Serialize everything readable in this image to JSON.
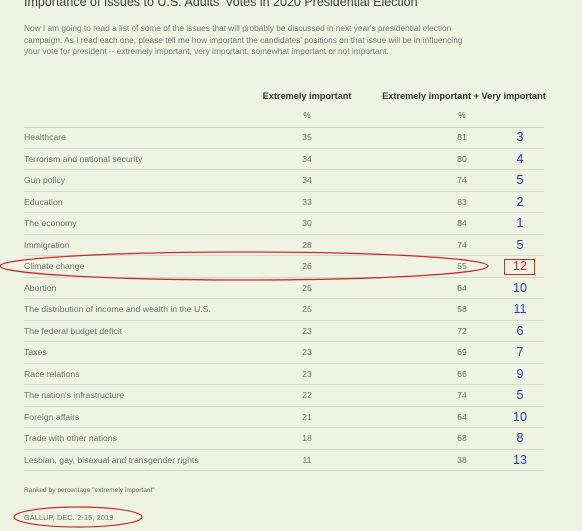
{
  "title": "Importance of Issues to U.S. Adults' Votes in 2020 Presidential Election",
  "question": "Now I am going to read a list of some of the issues that will probably be discussed in next year's presidential election campaign. As I read each one, please tell me how important the candidates' positions on that issue will be in influencing your vote for president -- extremely important, very important, somewhat important or not important.",
  "columns": {
    "col1": "Extremely important",
    "col2": "Extremely important + Very important",
    "unit1": "%",
    "unit2": "%"
  },
  "footnote": "Ranked by percentage \"extremely important\"",
  "source": "GALLUP, DEC. 2-15, 2019",
  "colors": {
    "background": "#eef3e3",
    "annotation_red": "#d12a2a",
    "rank_blue": "#2a3fb5"
  },
  "chart_data": {
    "type": "table",
    "columns": [
      "Issue",
      "Extremely important",
      "Extremely important + Very important",
      "Rank"
    ],
    "rows": [
      {
        "issue": "Healthcare",
        "extremely": "35",
        "extremely_very": "81",
        "rank": "3"
      },
      {
        "issue": "Terrorism and national security",
        "extremely": "34",
        "extremely_very": "80",
        "rank": "4"
      },
      {
        "issue": "Gun policy",
        "extremely": "34",
        "extremely_very": "74",
        "rank": "5"
      },
      {
        "issue": "Education",
        "extremely": "33",
        "extremely_very": "83",
        "rank": "2"
      },
      {
        "issue": "The economy",
        "extremely": "30",
        "extremely_very": "84",
        "rank": "1"
      },
      {
        "issue": "Immigration",
        "extremely": "28",
        "extremely_very": "74",
        "rank": "5"
      },
      {
        "issue": "Climate change",
        "extremely": "26",
        "extremely_very": "55",
        "rank": "12",
        "highlighted": true
      },
      {
        "issue": "Abortion",
        "extremely": "25",
        "extremely_very": "64",
        "rank": "10"
      },
      {
        "issue": "The distribution of income and wealth in the U.S.",
        "extremely": "25",
        "extremely_very": "58",
        "rank": "11"
      },
      {
        "issue": "The federal budget deficit",
        "extremely": "23",
        "extremely_very": "72",
        "rank": "6"
      },
      {
        "issue": "Taxes",
        "extremely": "23",
        "extremely_very": "69",
        "rank": "7"
      },
      {
        "issue": "Race relations",
        "extremely": "23",
        "extremely_very": "66",
        "rank": "9"
      },
      {
        "issue": "The nation's infrastructure",
        "extremely": "22",
        "extremely_very": "74",
        "rank": "5"
      },
      {
        "issue": "Foreign affairs",
        "extremely": "21",
        "extremely_very": "64",
        "rank": "10"
      },
      {
        "issue": "Trade with other nations",
        "extremely": "18",
        "extremely_very": "68",
        "rank": "8"
      },
      {
        "issue": "Lesbian, gay, bisexual and transgender rights",
        "extremely": "11",
        "extremely_very": "38",
        "rank": "13"
      }
    ]
  }
}
